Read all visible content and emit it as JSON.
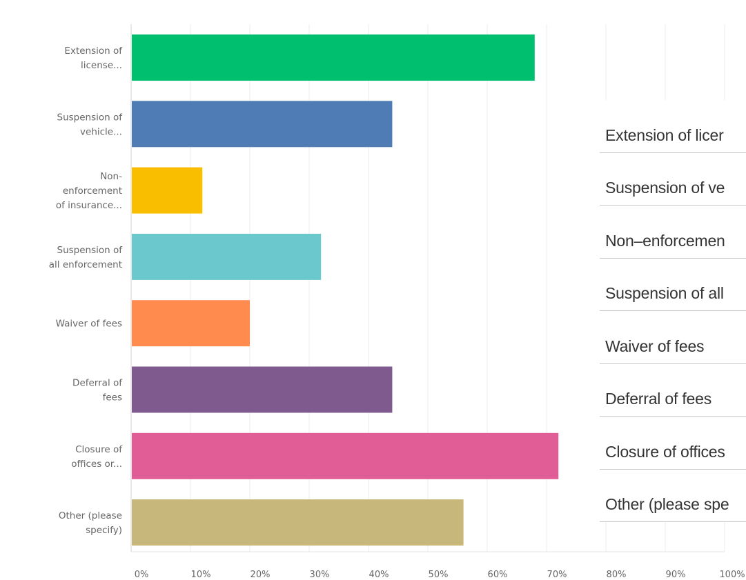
{
  "chart_data": {
    "type": "bar",
    "orientation": "horizontal",
    "categories": [
      [
        "Extension of",
        "license..."
      ],
      [
        "Suspension of",
        "vehicle..."
      ],
      [
        "Non-",
        "enforcement",
        "of insurance..."
      ],
      [
        "Suspension of",
        "all enforcement"
      ],
      [
        "Waiver of fees"
      ],
      [
        "Deferral of",
        "fees"
      ],
      [
        "Closure of",
        "offices or..."
      ],
      [
        "Other (please",
        "specify)"
      ]
    ],
    "values": [
      68,
      44,
      12,
      32,
      20,
      44,
      72,
      56
    ],
    "colors": [
      "#00bf6f",
      "#507cb6",
      "#f9be00",
      "#6bc8cd",
      "#ff8b4f",
      "#7f5a8e",
      "#e05e95",
      "#c8b77a"
    ],
    "x_ticks": [
      "0%",
      "10%",
      "20%",
      "30%",
      "40%",
      "50%",
      "60%",
      "70%",
      "80%",
      "90%",
      "100%"
    ],
    "xlim": [
      0,
      100
    ],
    "grid": true,
    "title": "",
    "xlabel": "",
    "ylabel": ""
  },
  "answer_choices": [
    "Extension of licer",
    "Suspension of ve",
    "Non–enforcemen",
    "Suspension of all",
    "Waiver of fees",
    "Deferral of fees",
    "Closure of offices",
    "Other (please spe"
  ]
}
